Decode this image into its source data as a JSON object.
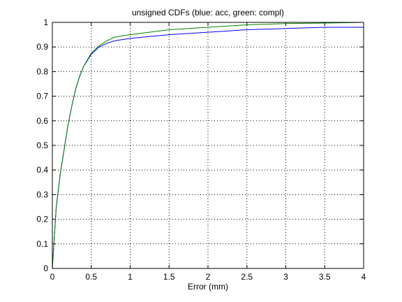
{
  "chart_data": {
    "type": "line",
    "title": "unsigned CDFs (blue: acc, green: compl)",
    "x_label": "Error (mm)",
    "x": [
      0,
      0.05,
      0.1,
      0.15,
      0.2,
      0.25,
      0.3,
      0.35,
      0.4,
      0.5,
      0.6,
      0.7,
      0.8,
      1.0,
      1.5,
      2.0,
      2.5,
      3.0,
      3.5,
      4.0
    ],
    "series": [
      {
        "color": "#0000ff",
        "values": [
          0,
          0.25,
          0.38,
          0.48,
          0.58,
          0.66,
          0.73,
          0.78,
          0.82,
          0.87,
          0.9,
          0.915,
          0.925,
          0.935,
          0.95,
          0.96,
          0.97,
          0.975,
          0.98,
          0.98
        ]
      },
      {
        "color": "#008000",
        "values": [
          0,
          0.25,
          0.38,
          0.48,
          0.58,
          0.66,
          0.73,
          0.78,
          0.82,
          0.875,
          0.905,
          0.925,
          0.94,
          0.95,
          0.97,
          0.98,
          0.99,
          0.995,
          0.997,
          1.0
        ]
      }
    ],
    "xlim": [
      0,
      4
    ],
    "xticks": [
      0,
      0.5,
      1,
      1.5,
      2,
      2.5,
      3,
      3.5,
      4
    ],
    "ylim": [
      0,
      1
    ],
    "yticks": [
      0,
      0.1,
      0.2,
      0.3,
      0.4,
      0.5,
      0.6,
      0.7,
      0.8,
      0.9,
      1
    ],
    "grid": true
  }
}
